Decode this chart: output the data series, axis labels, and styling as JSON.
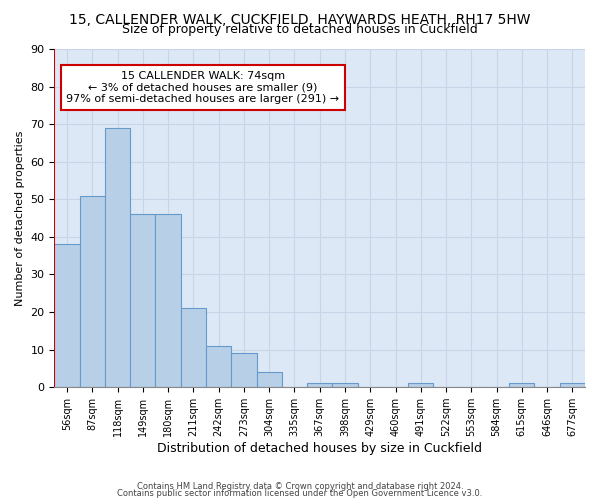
{
  "title": "15, CALLENDER WALK, CUCKFIELD, HAYWARDS HEATH, RH17 5HW",
  "subtitle": "Size of property relative to detached houses in Cuckfield",
  "xlabel": "Distribution of detached houses by size in Cuckfield",
  "ylabel": "Number of detached properties",
  "bar_labels": [
    "56sqm",
    "87sqm",
    "118sqm",
    "149sqm",
    "180sqm",
    "211sqm",
    "242sqm",
    "273sqm",
    "304sqm",
    "335sqm",
    "367sqm",
    "398sqm",
    "429sqm",
    "460sqm",
    "491sqm",
    "522sqm",
    "553sqm",
    "584sqm",
    "615sqm",
    "646sqm",
    "677sqm"
  ],
  "bar_values": [
    38,
    51,
    69,
    46,
    46,
    21,
    11,
    9,
    4,
    0,
    1,
    1,
    0,
    0,
    1,
    0,
    0,
    0,
    1,
    0,
    1
  ],
  "bar_color": "#b8cfe8",
  "bar_edge_color": "#6699cc",
  "vline_color": "#cc0000",
  "annotation_text": "15 CALLENDER WALK: 74sqm\n← 3% of detached houses are smaller (9)\n97% of semi-detached houses are larger (291) →",
  "annotation_box_color": "#ffffff",
  "annotation_box_edge": "#cc0000",
  "ylim": [
    0,
    90
  ],
  "yticks": [
    0,
    10,
    20,
    30,
    40,
    50,
    60,
    70,
    80,
    90
  ],
  "grid_color": "#c8d4e8",
  "bg_color": "#dce8f5",
  "footer1": "Contains HM Land Registry data © Crown copyright and database right 2024.",
  "footer2": "Contains public sector information licensed under the Open Government Licence v3.0.",
  "title_fontsize": 10,
  "subtitle_fontsize": 9
}
